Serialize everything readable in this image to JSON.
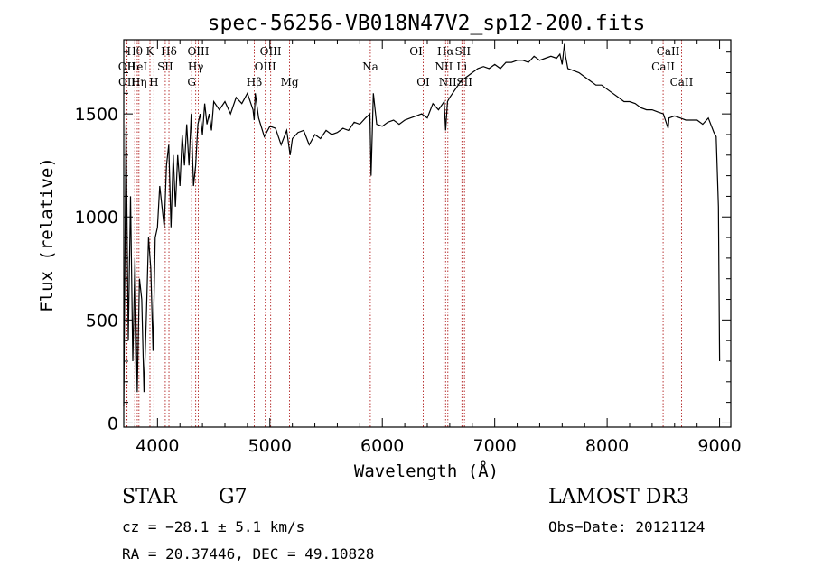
{
  "chart_data": {
    "type": "line",
    "title": "spec-56256-VB018N47V2_sp12-200.fits",
    "xlabel": "Wavelength (Å)",
    "ylabel": "Flux (relative)",
    "xlim": [
      3700,
      9100
    ],
    "ylim": [
      -20,
      1860
    ],
    "x_ticks": [
      4000,
      5000,
      6000,
      7000,
      8000,
      9000
    ],
    "y_ticks": [
      0,
      500,
      1000,
      1500
    ],
    "spectrum": {
      "name": "flux",
      "x": [
        3700,
        3720,
        3740,
        3760,
        3780,
        3800,
        3820,
        3840,
        3860,
        3880,
        3900,
        3920,
        3940,
        3960,
        3980,
        4000,
        4020,
        4040,
        4060,
        4080,
        4100,
        4120,
        4140,
        4160,
        4180,
        4200,
        4220,
        4240,
        4260,
        4280,
        4300,
        4320,
        4340,
        4360,
        4380,
        4400,
        4420,
        4440,
        4460,
        4480,
        4500,
        4550,
        4600,
        4650,
        4700,
        4750,
        4800,
        4850,
        4860,
        4870,
        4900,
        4950,
        5000,
        5050,
        5100,
        5150,
        5180,
        5200,
        5250,
        5300,
        5350,
        5400,
        5450,
        5500,
        5550,
        5600,
        5650,
        5700,
        5750,
        5800,
        5850,
        5890,
        5900,
        5920,
        5950,
        6000,
        6050,
        6100,
        6150,
        6200,
        6250,
        6300,
        6350,
        6400,
        6450,
        6500,
        6550,
        6563,
        6580,
        6600,
        6650,
        6700,
        6750,
        6800,
        6850,
        6900,
        6950,
        7000,
        7050,
        7100,
        7150,
        7200,
        7250,
        7300,
        7350,
        7400,
        7450,
        7500,
        7550,
        7580,
        7600,
        7610,
        7620,
        7630,
        7650,
        7700,
        7750,
        7800,
        7850,
        7900,
        7950,
        8000,
        8050,
        8100,
        8150,
        8200,
        8250,
        8300,
        8350,
        8400,
        8450,
        8500,
        8542,
        8550,
        8600,
        8650,
        8700,
        8750,
        8800,
        8850,
        8900,
        8950,
        8970,
        8990,
        9000
      ],
      "y": [
        80,
        1450,
        400,
        1100,
        300,
        800,
        150,
        700,
        600,
        150,
        500,
        900,
        750,
        350,
        900,
        950,
        1150,
        1050,
        950,
        1250,
        1350,
        950,
        1300,
        1050,
        1300,
        1150,
        1400,
        1250,
        1450,
        1250,
        1500,
        1150,
        1250,
        1450,
        1500,
        1400,
        1550,
        1450,
        1500,
        1420,
        1560,
        1520,
        1560,
        1500,
        1580,
        1550,
        1600,
        1520,
        1470,
        1600,
        1480,
        1390,
        1440,
        1430,
        1350,
        1420,
        1300,
        1380,
        1410,
        1420,
        1350,
        1400,
        1380,
        1420,
        1400,
        1410,
        1430,
        1420,
        1460,
        1450,
        1480,
        1500,
        1200,
        1600,
        1450,
        1440,
        1460,
        1470,
        1450,
        1470,
        1480,
        1490,
        1500,
        1480,
        1550,
        1520,
        1560,
        1420,
        1560,
        1580,
        1620,
        1660,
        1680,
        1700,
        1720,
        1730,
        1720,
        1740,
        1720,
        1750,
        1750,
        1760,
        1760,
        1750,
        1780,
        1760,
        1770,
        1780,
        1770,
        1790,
        1740,
        1790,
        1840,
        1780,
        1720,
        1710,
        1700,
        1680,
        1660,
        1640,
        1640,
        1620,
        1600,
        1580,
        1560,
        1560,
        1550,
        1530,
        1520,
        1520,
        1510,
        1500,
        1430,
        1480,
        1490,
        1480,
        1470,
        1470,
        1470,
        1450,
        1480,
        1410,
        1390,
        1050,
        300
      ]
    },
    "lines": [
      {
        "label": "Hθ",
        "w": 3798,
        "row": 1
      },
      {
        "label": "OII",
        "w": 3727,
        "row": 2
      },
      {
        "label": "OII",
        "w": 3729,
        "row": 3
      },
      {
        "label": "HeI",
        "w": 3820,
        "row": 2
      },
      {
        "label": "Hη",
        "w": 3835,
        "row": 3
      },
      {
        "label": "K",
        "w": 3933,
        "row": 1
      },
      {
        "label": "H",
        "w": 3968,
        "row": 3
      },
      {
        "label": "SII",
        "w": 4069,
        "row": 2
      },
      {
        "label": "Hδ",
        "w": 4102,
        "row": 1
      },
      {
        "label": "OIII",
        "w": 4363,
        "row": 1
      },
      {
        "label": "Hγ",
        "w": 4340,
        "row": 2
      },
      {
        "label": "G",
        "w": 4304,
        "row": 3
      },
      {
        "label": "OIII",
        "w": 5007,
        "row": 1
      },
      {
        "label": "OIII",
        "w": 4959,
        "row": 2
      },
      {
        "label": "Hβ",
        "w": 4861,
        "row": 3
      },
      {
        "label": "Mg",
        "w": 5175,
        "row": 3
      },
      {
        "label": "Na",
        "w": 5893,
        "row": 2
      },
      {
        "label": "OI",
        "w": 6300,
        "row": 1
      },
      {
        "label": "OI",
        "w": 6364,
        "row": 3
      },
      {
        "label": "Hα",
        "w": 6563,
        "row": 1
      },
      {
        "label": "SII",
        "w": 6716,
        "row": 1
      },
      {
        "label": "NII",
        "w": 6548,
        "row": 2
      },
      {
        "label": "Li",
        "w": 6708,
        "row": 2
      },
      {
        "label": "NII",
        "w": 6583,
        "row": 3
      },
      {
        "label": "SII",
        "w": 6731,
        "row": 3
      },
      {
        "label": "CaII",
        "w": 8542,
        "row": 1
      },
      {
        "label": "CaII",
        "w": 8498,
        "row": 2
      },
      {
        "label": "CaII",
        "w": 8662,
        "row": 3
      }
    ]
  },
  "info": {
    "class": "STAR",
    "subclass": "G7",
    "survey": "LAMOST DR3",
    "cz": "cz = −28.1 ± 5.1 km/s",
    "obs_date": "Obs−Date: 20121124",
    "radec": "RA =  20.37446, DEC =  49.10828"
  }
}
